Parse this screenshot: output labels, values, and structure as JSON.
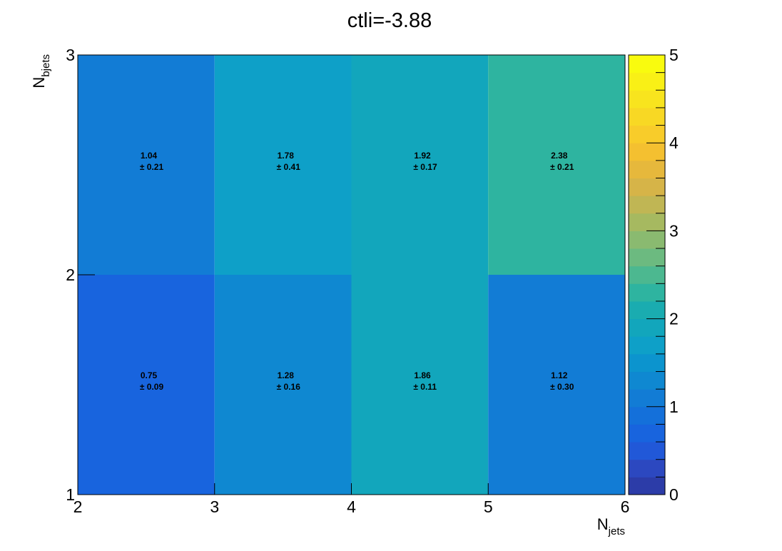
{
  "chart_data": {
    "type": "heatmap",
    "title": "ctli=-3.88",
    "xlabel": {
      "main": "N",
      "sub": "jets"
    },
    "ylabel": {
      "main": "N",
      "sub": "bjets"
    },
    "x_edges": [
      2,
      3,
      4,
      5,
      6
    ],
    "y_edges": [
      1,
      2,
      3
    ],
    "x_ticks": [
      "2",
      "3",
      "4",
      "5",
      "6"
    ],
    "y_ticks": [
      "1",
      "2",
      "3"
    ],
    "zlim": [
      0,
      5
    ],
    "z_ticks": [
      "0",
      "1",
      "2",
      "3",
      "4",
      "5"
    ],
    "cells": [
      {
        "x": 2.5,
        "y": 1.5,
        "value": 0.75,
        "value_label": "0.75",
        "error_label": "± 0.09"
      },
      {
        "x": 3.5,
        "y": 1.5,
        "value": 1.28,
        "value_label": "1.28",
        "error_label": "± 0.16"
      },
      {
        "x": 4.5,
        "y": 1.5,
        "value": 1.86,
        "value_label": "1.86",
        "error_label": "± 0.11"
      },
      {
        "x": 5.5,
        "y": 1.5,
        "value": 1.12,
        "value_label": "1.12",
        "error_label": "± 0.30"
      },
      {
        "x": 2.5,
        "y": 2.5,
        "value": 1.04,
        "value_label": "1.04",
        "error_label": "± 0.21"
      },
      {
        "x": 3.5,
        "y": 2.5,
        "value": 1.78,
        "value_label": "1.78",
        "error_label": "± 0.41"
      },
      {
        "x": 4.5,
        "y": 2.5,
        "value": 1.92,
        "value_label": "1.92",
        "error_label": "± 0.17"
      },
      {
        "x": 5.5,
        "y": 2.5,
        "value": 2.38,
        "value_label": "2.38",
        "error_label": "± 0.21"
      }
    ],
    "palette": [
      "#2c3ca8",
      "#2c48c0",
      "#2158d8",
      "#1864de",
      "#1470da",
      "#127cd5",
      "#0f88d1",
      "#0c94ce",
      "#0ea0c8",
      "#12a6bc",
      "#1aacb0",
      "#2eb4a0",
      "#4cb890",
      "#6cba80",
      "#8aba70",
      "#a6b960",
      "#c0b654",
      "#d6b448",
      "#e6b83c",
      "#f4c030",
      "#f8cc2a",
      "#f8d824",
      "#f8e41e",
      "#f9f016",
      "#f9fb0e"
    ]
  }
}
